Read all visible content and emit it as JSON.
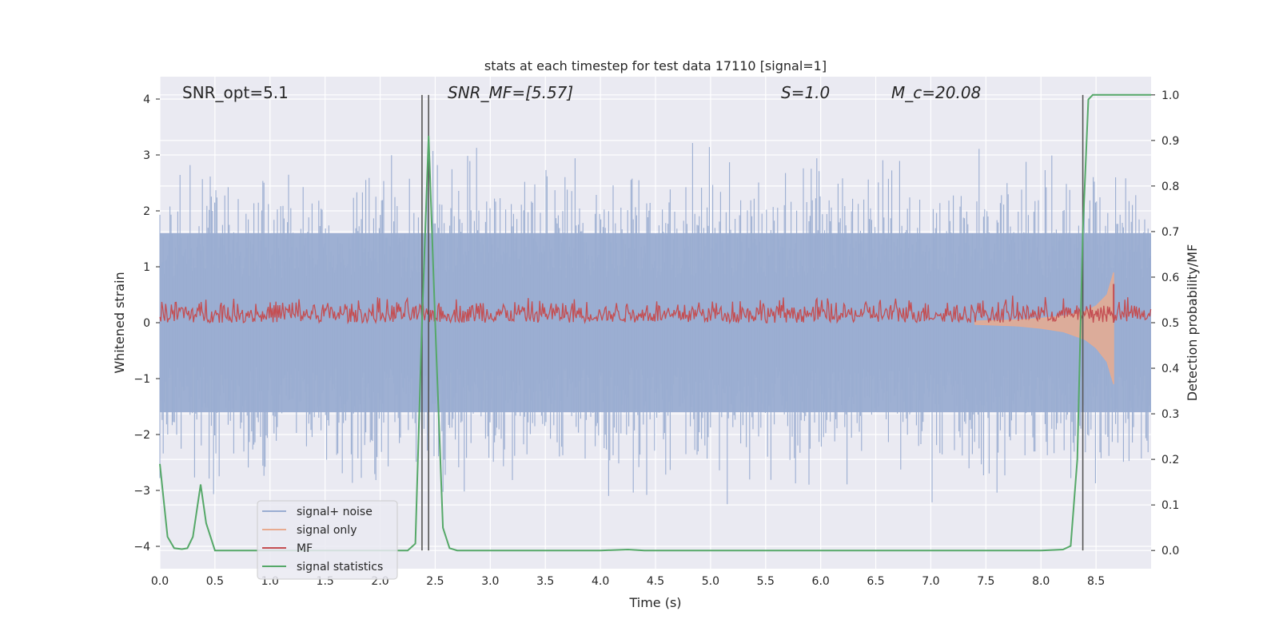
{
  "chart_data": {
    "type": "line",
    "title": "stats at each timestep for test data 17110 [signal=1]",
    "xlabel": "Time (s)",
    "ylabel": "Whitened strain",
    "ylabel_right": "Detection probability/MF",
    "xlim": [
      0.0,
      9.0
    ],
    "ylim": [
      -4.4,
      4.4
    ],
    "ylim_right": [
      -0.04,
      1.04
    ],
    "x_ticks": [
      "0.0",
      "0.5",
      "1.0",
      "1.5",
      "2.0",
      "2.5",
      "3.0",
      "3.5",
      "4.0",
      "4.5",
      "5.0",
      "5.5",
      "6.0",
      "6.5",
      "7.0",
      "7.5",
      "8.0",
      "8.5"
    ],
    "y_ticks": [
      "4",
      "3",
      "2",
      "1",
      "0",
      "−1",
      "−2",
      "−3",
      "−4"
    ],
    "y_ticks_right": [
      "1.0",
      "0.9",
      "0.8",
      "0.7",
      "0.6",
      "0.5",
      "0.4",
      "0.3",
      "0.2",
      "0.1",
      "0.0"
    ],
    "grid": true,
    "legend_position": "lower-left",
    "annotations": [
      {
        "label": "SNR_opt=5.1",
        "italic": false
      },
      {
        "label": "SNR_MF=[5.57]",
        "italic": true
      },
      {
        "label": "S=1.0",
        "italic": true
      },
      {
        "label": "M_c=20.08",
        "italic": true
      }
    ],
    "vlines_x": [
      2.38,
      2.44,
      8.38
    ],
    "series": [
      {
        "name": "signal+ noise",
        "color": "#9aadd1",
        "description": "whitened strain noise, approx ±1.6 typical with spikes to ±3.8",
        "envelope_typical": 1.6
      },
      {
        "name": "signal only",
        "color": "#e8ab90",
        "description": "chirp growing near merger",
        "x": [
          7.4,
          7.8,
          8.0,
          8.2,
          8.4,
          8.5,
          8.6,
          8.66
        ],
        "upper": [
          0.03,
          0.05,
          0.08,
          0.12,
          0.2,
          0.3,
          0.5,
          0.9
        ],
        "lower": [
          -0.03,
          -0.06,
          -0.1,
          -0.16,
          -0.3,
          -0.45,
          -0.7,
          -1.1
        ]
      },
      {
        "name": "MF",
        "color": "#c44e52",
        "description": "matched filter output on right axis, approx 0.50–0.56",
        "range_right": [
          0.5,
          0.56
        ]
      },
      {
        "name": "signal statistics",
        "color": "#55a868",
        "axis": "right",
        "x": [
          0.0,
          0.07,
          0.13,
          0.2,
          0.25,
          0.3,
          0.37,
          0.42,
          0.5,
          1.0,
          1.5,
          2.0,
          2.25,
          2.32,
          2.38,
          2.44,
          2.5,
          2.57,
          2.63,
          2.7,
          3.0,
          4.0,
          4.25,
          4.4,
          5.0,
          6.0,
          7.0,
          8.0,
          8.2,
          8.27,
          8.33,
          8.38,
          8.43,
          8.47,
          8.5,
          8.75,
          9.0
        ],
        "y": [
          0.19,
          0.03,
          0.005,
          0.003,
          0.005,
          0.03,
          0.145,
          0.06,
          0.0,
          0.0,
          0.0,
          0.0,
          0.0,
          0.015,
          0.5,
          0.91,
          0.5,
          0.05,
          0.005,
          0.0,
          0.0,
          0.0,
          0.002,
          0.0,
          0.0,
          0.0,
          0.0,
          0.0,
          0.002,
          0.01,
          0.2,
          0.7,
          0.99,
          1.0,
          1.0,
          1.0,
          1.0
        ]
      }
    ]
  }
}
